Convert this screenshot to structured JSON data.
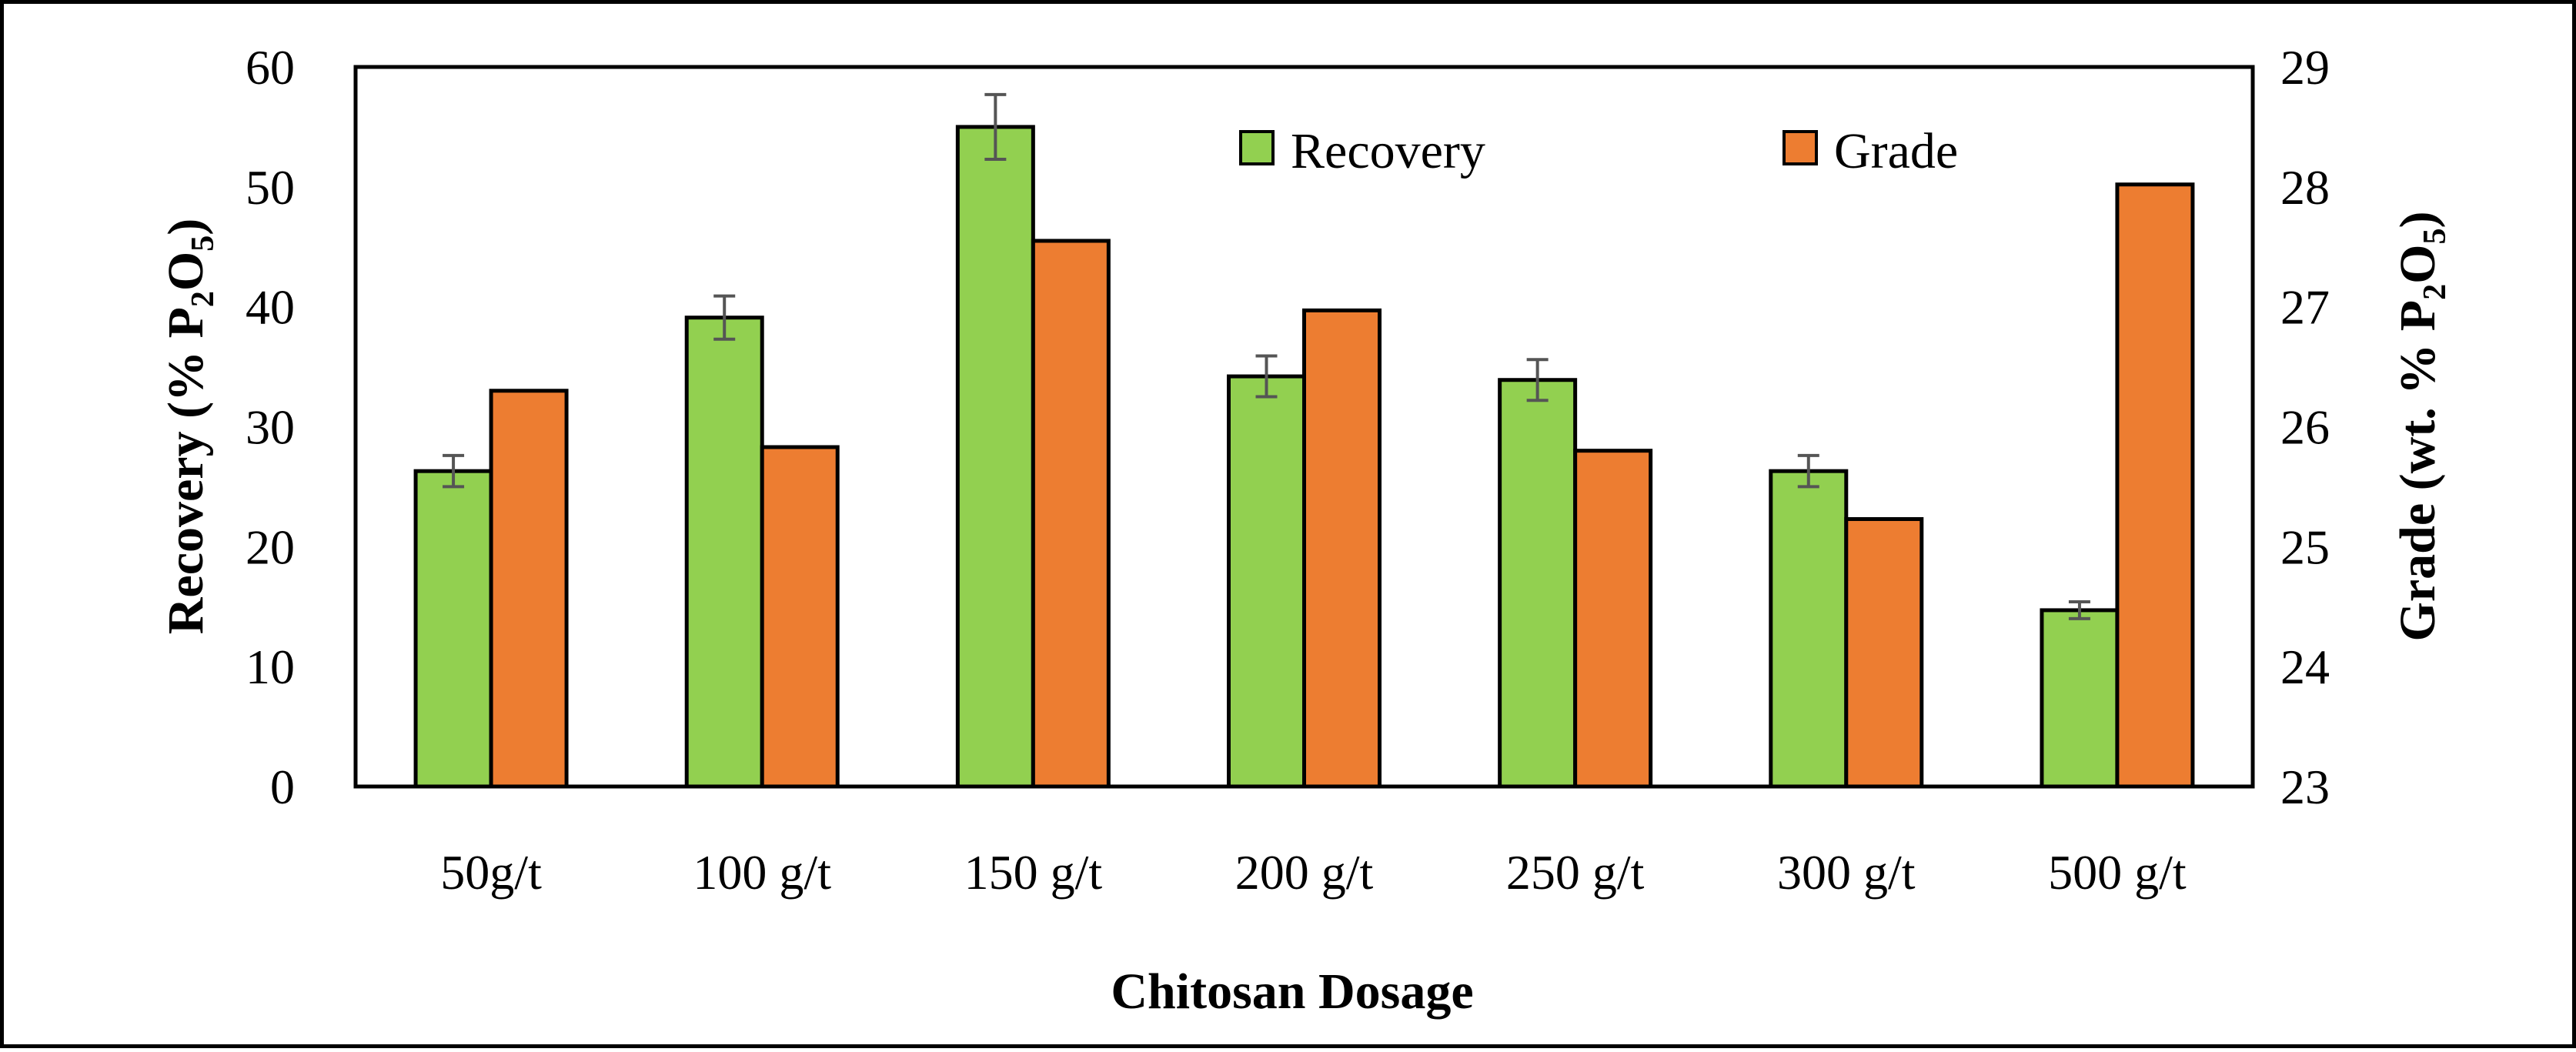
{
  "chart_data": {
    "type": "bar",
    "title": "",
    "categories": [
      "50g/t",
      "100 g/t",
      "150 g/t",
      "200 g/t",
      "250 g/t",
      "300 g/t",
      "500 g/t"
    ],
    "series": [
      {
        "name": "Recovery",
        "axis": "left",
        "color": "#92d050",
        "values": [
          26.3,
          39.1,
          55.0,
          34.2,
          33.9,
          26.3,
          14.7
        ],
        "error": [
          1.3,
          1.8,
          2.7,
          1.7,
          1.7,
          1.3,
          0.7
        ]
      },
      {
        "name": "Grade",
        "axis": "right",
        "color": "#ed7d31",
        "values": [
          26.3,
          25.83,
          27.55,
          26.97,
          25.8,
          25.23,
          28.02
        ]
      }
    ],
    "xlabel": "Chitosan Dosage",
    "ylabel": {
      "base": "Recovery (% P",
      "sub1": "2",
      "mid": "O",
      "sub2": "5",
      "end": ")"
    },
    "y2label": {
      "base": "Grade (wt. % P",
      "sub1": "2",
      "mid": "O",
      "sub2": "5",
      "end": ")"
    },
    "ylim": [
      0,
      60
    ],
    "y2lim": [
      23,
      29
    ],
    "yticks": [
      "0",
      "10",
      "20",
      "30",
      "40",
      "50",
      "60"
    ],
    "y2ticks": [
      "23",
      "24",
      "25",
      "26",
      "27",
      "28",
      "29"
    ],
    "legend": {
      "position": "top-right",
      "items": [
        "Recovery",
        "Grade"
      ]
    },
    "grid": false
  }
}
